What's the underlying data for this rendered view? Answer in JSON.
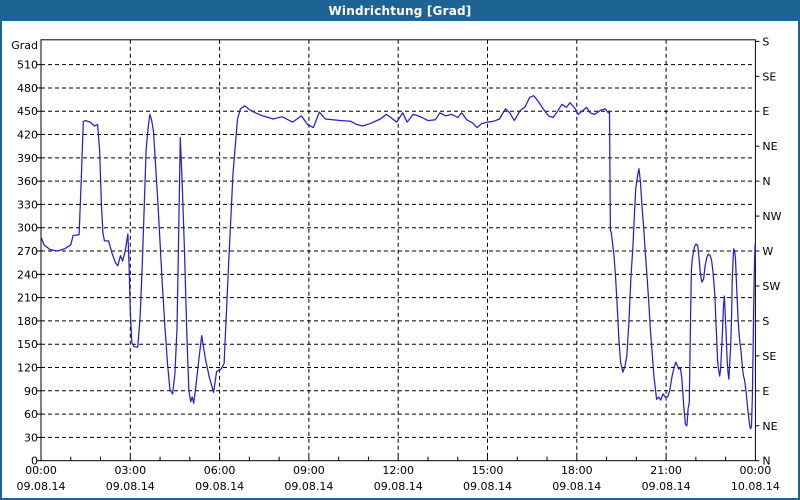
{
  "window": {
    "title": "Windrichtung [Grad]"
  },
  "colors": {
    "titlebar_bg": "#1d6394",
    "window_border": "#1d6394",
    "line": "#2222cc",
    "axis": "#000000",
    "background": "#ffffff"
  },
  "chart_data": {
    "type": "line",
    "title": "Windrichtung [Grad]",
    "ylabel": "Grad",
    "xlabel": "",
    "ylim": [
      0,
      540
    ],
    "xlim_hours": [
      0,
      24
    ],
    "grid": "dashed-black, horizontal every 30 deg, vertical every 3 h",
    "legend_position": "none",
    "y_left_unit_label": "Grad",
    "y_left_ticks": [
      0,
      30,
      60,
      90,
      120,
      150,
      180,
      210,
      240,
      270,
      300,
      330,
      360,
      390,
      420,
      450,
      480,
      510
    ],
    "y_right_labels": [
      {
        "deg": 0,
        "label": "N"
      },
      {
        "deg": 45,
        "label": "NE"
      },
      {
        "deg": 90,
        "label": "E"
      },
      {
        "deg": 135,
        "label": "SE"
      },
      {
        "deg": 180,
        "label": "S"
      },
      {
        "deg": 225,
        "label": "SW"
      },
      {
        "deg": 270,
        "label": "W"
      },
      {
        "deg": 315,
        "label": "NW"
      },
      {
        "deg": 360,
        "label": "N"
      },
      {
        "deg": 405,
        "label": "NE"
      },
      {
        "deg": 450,
        "label": "E"
      },
      {
        "deg": 495,
        "label": "SE"
      },
      {
        "deg": 540,
        "label": "S"
      }
    ],
    "x_ticks": [
      {
        "hour": 0,
        "time": "00:00",
        "date": "09.08.14"
      },
      {
        "hour": 3,
        "time": "03:00",
        "date": "09.08.14"
      },
      {
        "hour": 6,
        "time": "06:00",
        "date": "09.08.14"
      },
      {
        "hour": 9,
        "time": "09:00",
        "date": "09.08.14"
      },
      {
        "hour": 12,
        "time": "12:00",
        "date": "09.08.14"
      },
      {
        "hour": 15,
        "time": "15:00",
        "date": "09.08.14"
      },
      {
        "hour": 18,
        "time": "18:00",
        "date": "09.08.14"
      },
      {
        "hour": 21,
        "time": "21:00",
        "date": "09.08.14"
      },
      {
        "hour": 24,
        "time": "00:00",
        "date": "10.08.14"
      }
    ],
    "series": [
      {
        "name": "Windrichtung",
        "color": "#2222cc",
        "points": [
          [
            0.0,
            288
          ],
          [
            0.1,
            278
          ],
          [
            0.3,
            272
          ],
          [
            0.55,
            270
          ],
          [
            0.8,
            273
          ],
          [
            1.0,
            278
          ],
          [
            1.08,
            290
          ],
          [
            1.28,
            291
          ],
          [
            1.35,
            360
          ],
          [
            1.42,
            437
          ],
          [
            1.5,
            438
          ],
          [
            1.65,
            436
          ],
          [
            1.8,
            431
          ],
          [
            1.9,
            433
          ],
          [
            1.97,
            400
          ],
          [
            2.03,
            330
          ],
          [
            2.08,
            294
          ],
          [
            2.13,
            283
          ],
          [
            2.27,
            283
          ],
          [
            2.38,
            268
          ],
          [
            2.5,
            255
          ],
          [
            2.58,
            251
          ],
          [
            2.67,
            264
          ],
          [
            2.74,
            257
          ],
          [
            2.83,
            270
          ],
          [
            2.92,
            292
          ],
          [
            2.96,
            250
          ],
          [
            3.0,
            193
          ],
          [
            3.05,
            152
          ],
          [
            3.12,
            147
          ],
          [
            3.25,
            146
          ],
          [
            3.33,
            185
          ],
          [
            3.4,
            250
          ],
          [
            3.47,
            330
          ],
          [
            3.53,
            400
          ],
          [
            3.6,
            430
          ],
          [
            3.66,
            446
          ],
          [
            3.72,
            438
          ],
          [
            3.78,
            424
          ],
          [
            3.85,
            380
          ],
          [
            3.93,
            330
          ],
          [
            4.0,
            280
          ],
          [
            4.08,
            225
          ],
          [
            4.16,
            175
          ],
          [
            4.25,
            125
          ],
          [
            4.33,
            92
          ],
          [
            4.42,
            86
          ],
          [
            4.5,
            112
          ],
          [
            4.57,
            170
          ],
          [
            4.62,
            280
          ],
          [
            4.68,
            416
          ],
          [
            4.74,
            360
          ],
          [
            4.82,
            270
          ],
          [
            4.9,
            160
          ],
          [
            4.97,
            90
          ],
          [
            5.03,
            76
          ],
          [
            5.08,
            82
          ],
          [
            5.13,
            74
          ],
          [
            5.2,
            95
          ],
          [
            5.3,
            130
          ],
          [
            5.4,
            161
          ],
          [
            5.52,
            132
          ],
          [
            5.65,
            108
          ],
          [
            5.8,
            88
          ],
          [
            5.9,
            115
          ],
          [
            6.05,
            118
          ],
          [
            6.15,
            125
          ],
          [
            6.3,
            250
          ],
          [
            6.45,
            370
          ],
          [
            6.6,
            440
          ],
          [
            6.7,
            453
          ],
          [
            6.85,
            457
          ],
          [
            7.0,
            452
          ],
          [
            7.2,
            448
          ],
          [
            7.45,
            444
          ],
          [
            7.8,
            440
          ],
          [
            8.1,
            443
          ],
          [
            8.45,
            436
          ],
          [
            8.75,
            444
          ],
          [
            8.95,
            433
          ],
          [
            9.15,
            429
          ],
          [
            9.35,
            449
          ],
          [
            9.55,
            440
          ],
          [
            9.8,
            439
          ],
          [
            10.1,
            438
          ],
          [
            10.4,
            437
          ],
          [
            10.6,
            433
          ],
          [
            10.8,
            431
          ],
          [
            11.05,
            434
          ],
          [
            11.4,
            440
          ],
          [
            11.6,
            446
          ],
          [
            11.75,
            442
          ],
          [
            11.95,
            436
          ],
          [
            12.15,
            448
          ],
          [
            12.3,
            436
          ],
          [
            12.5,
            446
          ],
          [
            12.6,
            445
          ],
          [
            12.8,
            442
          ],
          [
            13.0,
            438
          ],
          [
            13.25,
            439
          ],
          [
            13.4,
            448
          ],
          [
            13.6,
            444
          ],
          [
            13.8,
            446
          ],
          [
            14.0,
            442
          ],
          [
            14.13,
            448
          ],
          [
            14.3,
            439
          ],
          [
            14.5,
            435
          ],
          [
            14.65,
            429
          ],
          [
            14.8,
            434
          ],
          [
            15.0,
            436
          ],
          [
            15.2,
            437
          ],
          [
            15.4,
            440
          ],
          [
            15.6,
            453
          ],
          [
            15.75,
            448
          ],
          [
            15.9,
            438
          ],
          [
            16.1,
            451
          ],
          [
            16.25,
            455
          ],
          [
            16.42,
            468
          ],
          [
            16.55,
            470
          ],
          [
            16.7,
            463
          ],
          [
            16.87,
            453
          ],
          [
            17.05,
            444
          ],
          [
            17.2,
            442
          ],
          [
            17.32,
            448
          ],
          [
            17.5,
            459
          ],
          [
            17.65,
            455
          ],
          [
            17.77,
            461
          ],
          [
            17.95,
            453
          ],
          [
            18.05,
            446
          ],
          [
            18.2,
            451
          ],
          [
            18.33,
            455
          ],
          [
            18.45,
            448
          ],
          [
            18.6,
            446
          ],
          [
            18.78,
            451
          ],
          [
            18.95,
            453
          ],
          [
            19.06,
            448
          ],
          [
            19.1,
            450
          ],
          [
            19.13,
            296
          ],
          [
            19.16,
            294
          ],
          [
            19.25,
            264
          ],
          [
            19.3,
            238
          ],
          [
            19.35,
            204
          ],
          [
            19.42,
            152
          ],
          [
            19.47,
            127
          ],
          [
            19.55,
            114
          ],
          [
            19.62,
            122
          ],
          [
            19.68,
            135
          ],
          [
            19.75,
            178
          ],
          [
            19.82,
            238
          ],
          [
            19.88,
            273
          ],
          [
            19.93,
            311
          ],
          [
            19.98,
            350
          ],
          [
            20.05,
            369
          ],
          [
            20.09,
            376
          ],
          [
            20.14,
            358
          ],
          [
            20.19,
            328
          ],
          [
            20.25,
            298
          ],
          [
            20.3,
            268
          ],
          [
            20.36,
            238
          ],
          [
            20.42,
            204
          ],
          [
            20.47,
            170
          ],
          [
            20.53,
            140
          ],
          [
            20.59,
            109
          ],
          [
            20.68,
            79
          ],
          [
            20.75,
            82
          ],
          [
            20.82,
            78
          ],
          [
            20.9,
            86
          ],
          [
            20.97,
            82
          ],
          [
            21.05,
            82
          ],
          [
            21.12,
            90
          ],
          [
            21.2,
            109
          ],
          [
            21.28,
            122
          ],
          [
            21.33,
            127
          ],
          [
            21.42,
            118
          ],
          [
            21.48,
            120
          ],
          [
            21.53,
            105
          ],
          [
            21.59,
            71
          ],
          [
            21.65,
            47
          ],
          [
            21.7,
            45
          ],
          [
            21.74,
            67
          ],
          [
            21.78,
            75
          ],
          [
            21.82,
            180
          ],
          [
            21.85,
            245
          ],
          [
            21.88,
            260
          ],
          [
            21.95,
            275
          ],
          [
            22.0,
            279
          ],
          [
            22.06,
            277
          ],
          [
            22.11,
            260
          ],
          [
            22.15,
            242
          ],
          [
            22.2,
            230
          ],
          [
            22.26,
            234
          ],
          [
            22.31,
            251
          ],
          [
            22.37,
            262
          ],
          [
            22.42,
            266
          ],
          [
            22.48,
            264
          ],
          [
            22.53,
            258
          ],
          [
            22.58,
            242
          ],
          [
            22.64,
            212
          ],
          [
            22.67,
            182
          ],
          [
            22.7,
            157
          ],
          [
            22.73,
            129
          ],
          [
            22.76,
            118
          ],
          [
            22.8,
            109
          ],
          [
            22.83,
            118
          ],
          [
            22.87,
            148
          ],
          [
            22.9,
            174
          ],
          [
            22.93,
            200
          ],
          [
            22.96,
            212
          ],
          [
            22.99,
            187
          ],
          [
            23.02,
            161
          ],
          [
            23.05,
            131
          ],
          [
            23.08,
            114
          ],
          [
            23.11,
            105
          ],
          [
            23.17,
            148
          ],
          [
            23.2,
            187
          ],
          [
            23.22,
            230
          ],
          [
            23.25,
            260
          ],
          [
            23.27,
            273
          ],
          [
            23.3,
            270
          ],
          [
            23.33,
            260
          ],
          [
            23.36,
            234
          ],
          [
            23.39,
            208
          ],
          [
            23.42,
            182
          ],
          [
            23.45,
            165
          ],
          [
            23.48,
            152
          ],
          [
            23.51,
            144
          ],
          [
            23.54,
            131
          ],
          [
            23.57,
            118
          ],
          [
            23.6,
            109
          ],
          [
            23.63,
            105
          ],
          [
            23.66,
            97
          ],
          [
            23.69,
            88
          ],
          [
            23.72,
            75
          ],
          [
            23.75,
            64
          ],
          [
            23.78,
            54
          ],
          [
            23.81,
            45
          ],
          [
            23.84,
            41
          ],
          [
            23.87,
            45
          ],
          [
            23.9,
            84
          ],
          [
            23.92,
            135
          ],
          [
            23.94,
            191
          ],
          [
            23.96,
            238
          ],
          [
            23.98,
            268
          ],
          [
            23.99,
            279
          ],
          [
            24.0,
            270
          ]
        ]
      }
    ]
  }
}
